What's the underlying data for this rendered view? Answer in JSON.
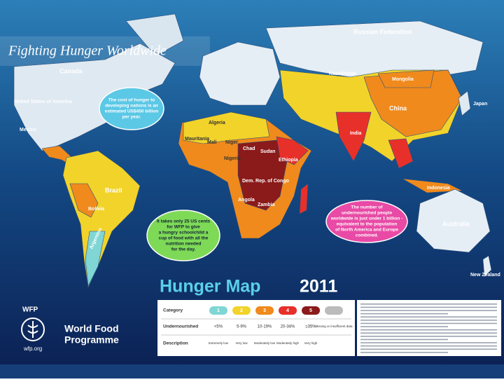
{
  "header": {
    "title": "Fighting Hunger Worldwide"
  },
  "map_labels": [
    "Canada",
    "United States of America",
    "Mexico",
    "Brazil",
    "Bolivia",
    "Argentina",
    "Russian Federation",
    "Kazakhstan",
    "Mongolia",
    "China",
    "India",
    "Japan",
    "Indonesia",
    "Australia",
    "New Zealand",
    "Algeria",
    "Mali",
    "Niger",
    "Chad",
    "Sudan",
    "Nigeria",
    "Mauritania",
    "Ethiopia",
    "Angola",
    "Zambia",
    "Dem. Rep. of Congo"
  ],
  "callouts": [
    [
      "The cost of hunger to",
      "developing nations is an",
      "estimated US$450 billion",
      "per year."
    ],
    [
      "It takes only 25 US cents",
      "for WFP to give",
      "a hungry schoolchild a",
      "cup of food with all the",
      "nutrition needed",
      "for the day."
    ],
    [
      "The number of",
      "undernourished people",
      "worldwide is just under 1 billion -",
      "equivalent to the population",
      "of North America and Europe",
      "combined."
    ]
  ],
  "legend": {
    "title": "Hunger Map",
    "year": "2011",
    "row_labels": [
      "Category",
      "Undernourished",
      "Description"
    ],
    "categories": [
      1,
      2,
      3,
      4,
      5
    ],
    "undernourished": [
      "<5%",
      "5-9%",
      "10-19%",
      "20-34%",
      "≥35%",
      "Missing or insufficient data"
    ],
    "descriptions": [
      "Extremely low",
      "Very low",
      "Moderately low",
      "Moderately high",
      "Very high"
    ]
  },
  "logo": {
    "acronym": "WFP",
    "name": [
      "World Food",
      "Programme"
    ],
    "url": "wfp.org"
  }
}
